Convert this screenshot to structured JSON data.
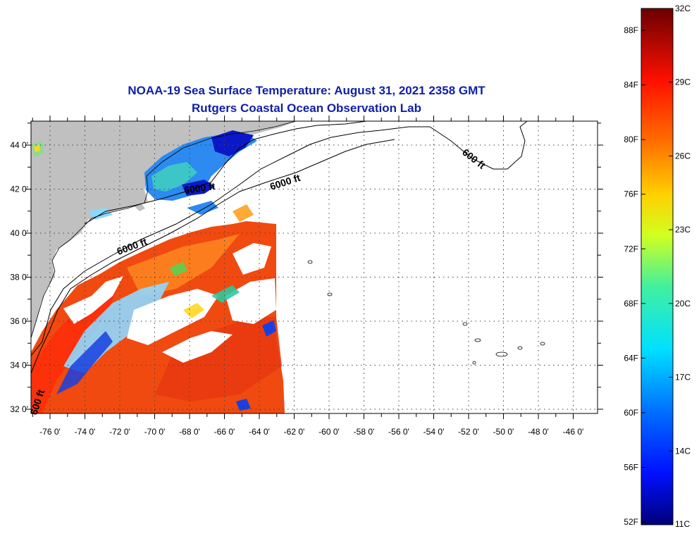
{
  "title": "NOAA-19 Sea Surface Temperature:  August 31, 2021 2358 GMT",
  "subtitle": "Rutgers Coastal Ocean Observation Lab",
  "lon_labels": [
    "-76 0'",
    "-74 0'",
    "-72 0'",
    "-70 0'",
    "-68 0'",
    "-66 0'",
    "-64 0'",
    "-62 0'",
    "-60 0'",
    "-58 0'",
    "-56 0'",
    "-54 0'",
    "-52 0'",
    "-50 0'",
    "-48 0'",
    "-46 0'"
  ],
  "lat_labels": [
    "44 0'",
    "42 0'",
    "40 0'",
    "38 0'",
    "36 0'",
    "34 0'",
    "32 0'"
  ],
  "contour_labels": [
    "6000 ft",
    "600 ft",
    "6000 ft",
    "600 ft",
    "6000 ft"
  ],
  "colorbar": {
    "fahrenheit": [
      "88F",
      "84F",
      "80F",
      "76F",
      "72F",
      "68F",
      "64F",
      "60F",
      "56F",
      "52F"
    ],
    "celsius": [
      "32C",
      "29C",
      "26C",
      "23C",
      "20C",
      "17C",
      "14C",
      "11C"
    ],
    "range_c": [
      11,
      32
    ]
  },
  "colors": {
    "title": "#1020a8",
    "land": "#c0c0c0",
    "warm": "#f04a10",
    "cold": "#1030d8"
  }
}
